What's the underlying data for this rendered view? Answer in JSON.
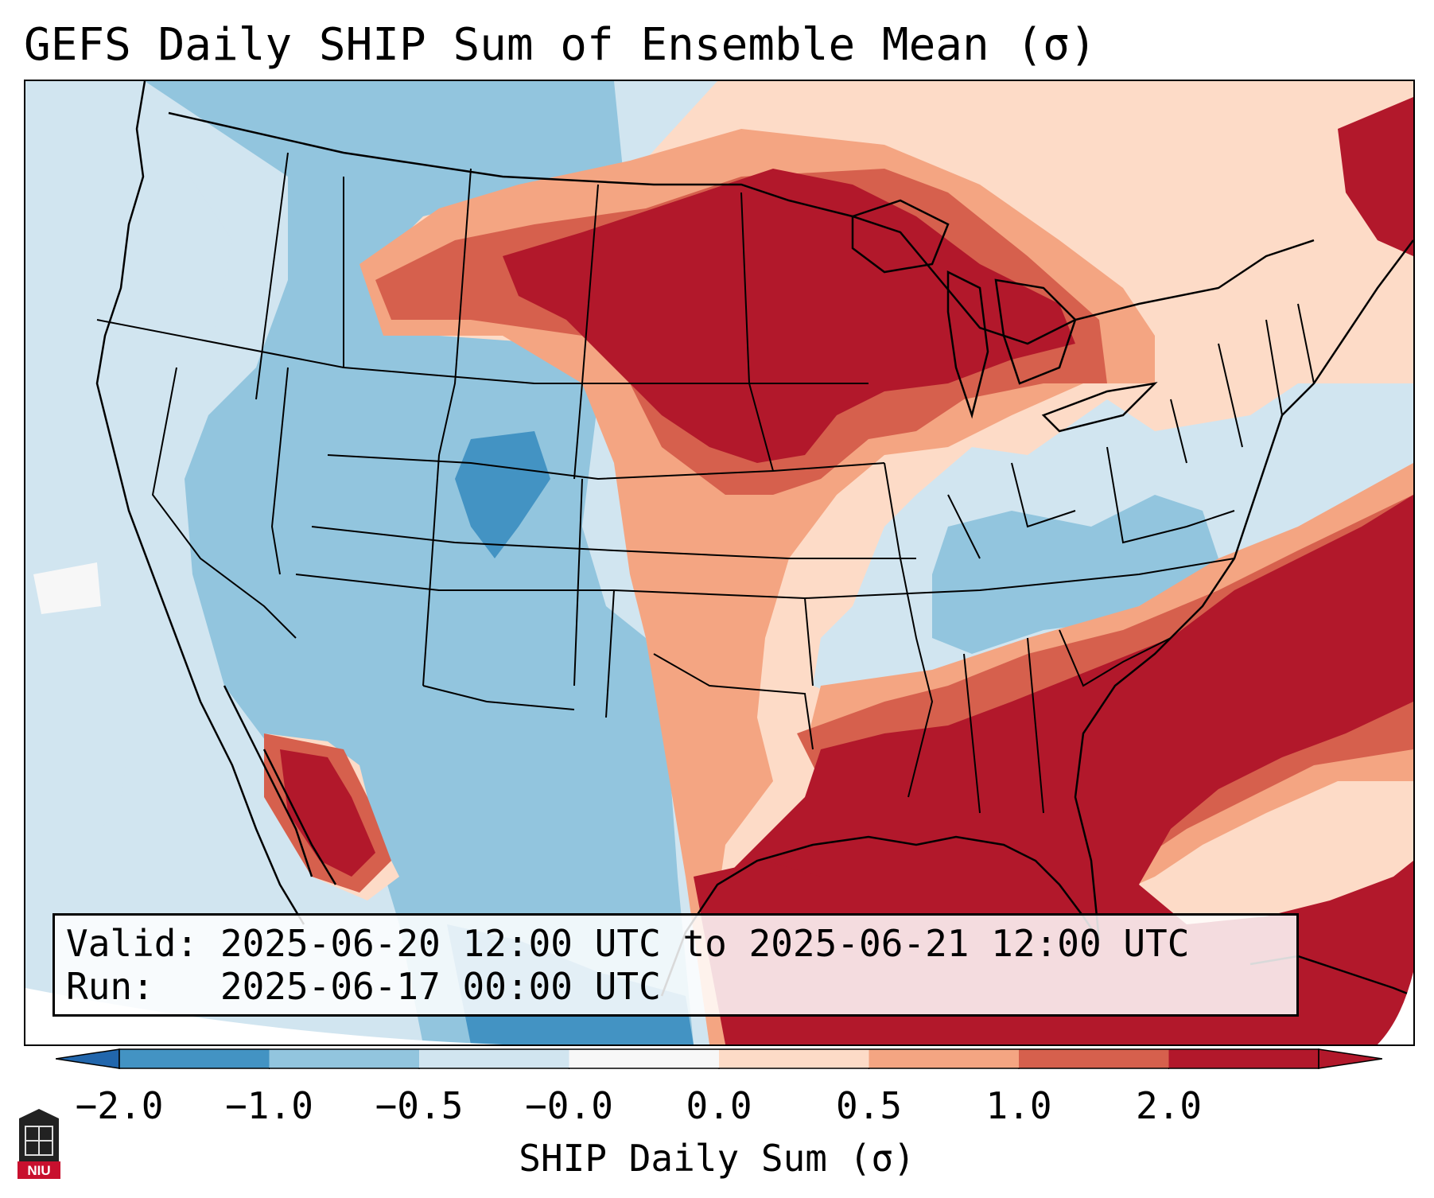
{
  "title": "GEFS Daily SHIP Sum of Ensemble Mean (σ)",
  "info": {
    "valid_label": "Valid:",
    "valid_value": "2025-06-20 12:00 UTC to 2025-06-21 12:00 UTC",
    "run_label": "Run:",
    "run_value": "2025-06-17 00:00 UTC"
  },
  "colorbar": {
    "label": "SHIP Daily Sum (σ)",
    "ticks": [
      "−2.0",
      "−1.0",
      "−0.5",
      "−0.0",
      "0.0",
      "0.5",
      "1.0",
      "2.0"
    ],
    "bin_colors": [
      "#4393c3",
      "#92c5de",
      "#d1e5f0",
      "#f7f7f7",
      "#fddbc7",
      "#f4a582",
      "#d6604d",
      "#b2182b"
    ],
    "under_color": "#2166ac",
    "over_color": "#b2182b"
  },
  "logo": {
    "text": "NIU"
  }
}
